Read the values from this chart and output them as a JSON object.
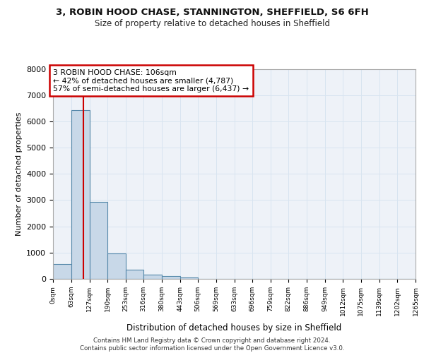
{
  "title1": "3, ROBIN HOOD CHASE, STANNINGTON, SHEFFIELD, S6 6FH",
  "title2": "Size of property relative to detached houses in Sheffield",
  "xlabel": "Distribution of detached houses by size in Sheffield",
  "ylabel": "Number of detached properties",
  "footer1": "Contains HM Land Registry data © Crown copyright and database right 2024.",
  "footer2": "Contains public sector information licensed under the Open Government Licence v3.0.",
  "annotation_title": "3 ROBIN HOOD CHASE: 106sqm",
  "annotation_line1": "← 42% of detached houses are smaller (4,787)",
  "annotation_line2": "57% of semi-detached houses are larger (6,437) →",
  "property_size": 106,
  "bin_edges": [
    0,
    63,
    127,
    190,
    253,
    316,
    380,
    443,
    506,
    569,
    633,
    696,
    759,
    822,
    886,
    949,
    1012,
    1075,
    1139,
    1202,
    1265
  ],
  "bar_values": [
    570,
    6420,
    2920,
    970,
    360,
    160,
    100,
    65,
    0,
    0,
    0,
    0,
    0,
    0,
    0,
    0,
    0,
    0,
    0,
    0
  ],
  "bar_color": "#c8d8e8",
  "bar_edge_color": "#5588aa",
  "bar_linewidth": 0.8,
  "vline_color": "#cc0000",
  "vline_linewidth": 1.5,
  "grid_color": "#d8e4f0",
  "background_color": "#eef2f8",
  "ylim_max": 8000,
  "yticks": [
    0,
    1000,
    2000,
    3000,
    4000,
    5000,
    6000,
    7000,
    8000
  ],
  "tick_labels": [
    "0sqm",
    "63sqm",
    "127sqm",
    "190sqm",
    "253sqm",
    "316sqm",
    "380sqm",
    "443sqm",
    "506sqm",
    "569sqm",
    "633sqm",
    "696sqm",
    "759sqm",
    "822sqm",
    "886sqm",
    "949sqm",
    "1012sqm",
    "1075sqm",
    "1139sqm",
    "1202sqm",
    "1265sqm"
  ]
}
